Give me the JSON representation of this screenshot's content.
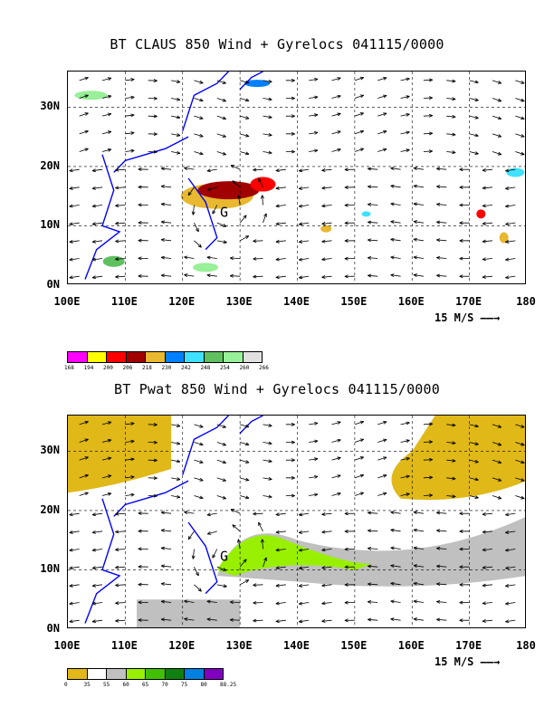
{
  "chart_data": [
    {
      "type": "heatmap",
      "title": "BT CLAUS 850 Wind + Gyrelocs 041115/0000",
      "x_ticks": [
        "100E",
        "110E",
        "120E",
        "130E",
        "140E",
        "150E",
        "160E",
        "170E",
        "180"
      ],
      "y_ticks": [
        "0N",
        "10N",
        "20N",
        "30N"
      ],
      "xlim": [
        100,
        180
      ],
      "ylim": [
        0,
        36
      ],
      "vector_scale_label": "15 M/S",
      "gyre_marker": {
        "symbol": "G",
        "lon": 126.5,
        "lat": 11.5
      },
      "colorbar": {
        "labels": [
          "168",
          "194",
          "200",
          "206",
          "218",
          "230",
          "242",
          "248",
          "254",
          "260",
          "266"
        ],
        "colors": [
          "#ff00ff",
          "#ffff00",
          "#ff0000",
          "#a00000",
          "#e8b830",
          "#0080ff",
          "#40e0ff",
          "#60c060",
          "#98f098",
          "#e0e0e0"
        ]
      }
    },
    {
      "type": "heatmap",
      "title": "BT Pwat 850 Wind + Gyrelocs 041115/0000",
      "x_ticks": [
        "100E",
        "110E",
        "120E",
        "130E",
        "140E",
        "150E",
        "160E",
        "170E",
        "180"
      ],
      "y_ticks": [
        "0N",
        "10N",
        "20N",
        "30N"
      ],
      "xlim": [
        100,
        180
      ],
      "ylim": [
        0,
        36
      ],
      "vector_scale_label": "15 M/S",
      "gyre_marker": {
        "symbol": "G",
        "lon": 126.5,
        "lat": 11.5
      },
      "colorbar": {
        "labels": [
          "0",
          "35",
          "55",
          "60",
          "65",
          "70",
          "75",
          "80",
          "88.25"
        ],
        "colors": [
          "#e0b818",
          "#ffffff",
          "#c0c0c0",
          "#98f000",
          "#40c000",
          "#108010",
          "#0080e0",
          "#8000c0"
        ]
      }
    }
  ]
}
